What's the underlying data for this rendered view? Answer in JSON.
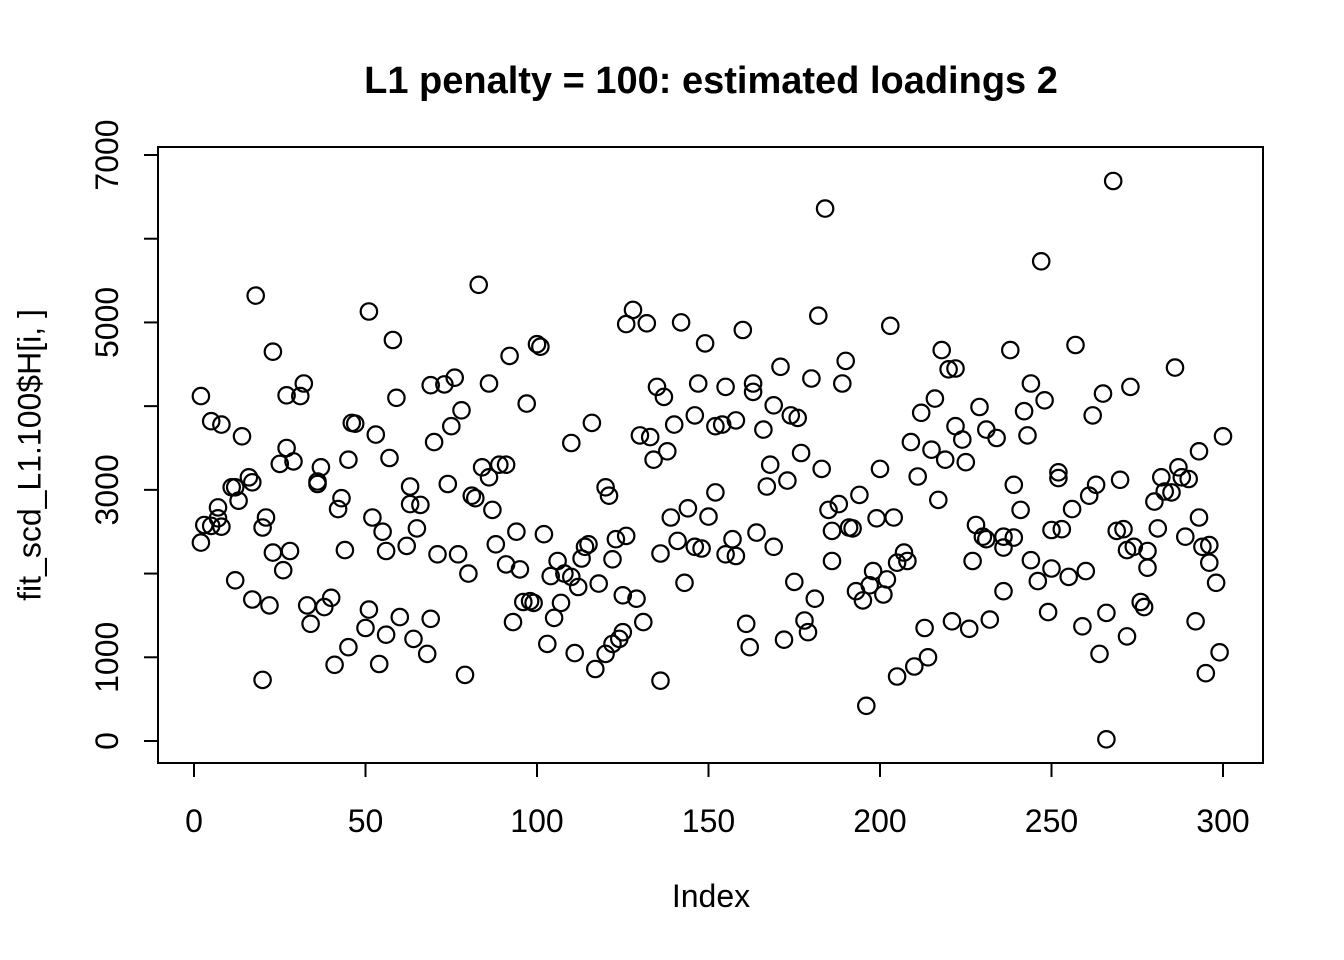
{
  "page": {
    "background": "#ffffff",
    "foreground": "#000000"
  },
  "chart_data": {
    "type": "scatter",
    "title": "L1 penalty = 100: estimated loadings 2",
    "xlabel": "Index",
    "ylabel": "fit_scd_L1.100$H[i, ]",
    "xlim": [
      0,
      300
    ],
    "ylim": [
      0,
      7000
    ],
    "grid": false,
    "legend": "none",
    "marker": "open-circle",
    "marker_color": "#000000",
    "x_ticks": [
      {
        "v": 0,
        "label": "0"
      },
      {
        "v": 50,
        "label": "50"
      },
      {
        "v": 100,
        "label": "100"
      },
      {
        "v": 150,
        "label": "150"
      },
      {
        "v": 200,
        "label": "200"
      },
      {
        "v": 250,
        "label": "250"
      },
      {
        "v": 300,
        "label": "300"
      }
    ],
    "y_ticks": [
      {
        "v": 0,
        "label": "0"
      },
      {
        "v": 1000,
        "label": "1000"
      },
      {
        "v": 2000,
        "label": ""
      },
      {
        "v": 3000,
        "label": "3000"
      },
      {
        "v": 4000,
        "label": ""
      },
      {
        "v": 5000,
        "label": "5000"
      },
      {
        "v": 6000,
        "label": ""
      },
      {
        "v": 7000,
        "label": "7000"
      }
    ],
    "points": [
      [
        18,
        5320
      ],
      [
        23,
        4650
      ],
      [
        51,
        5130
      ],
      [
        58,
        4790
      ],
      [
        83,
        5450
      ],
      [
        92,
        4600
      ],
      [
        100,
        4740
      ],
      [
        101,
        4710
      ],
      [
        126,
        4980
      ],
      [
        128,
        5150
      ],
      [
        132,
        4990
      ],
      [
        142,
        5000
      ],
      [
        149,
        4750
      ],
      [
        160,
        4910
      ],
      [
        182,
        5080
      ],
      [
        184,
        6360
      ],
      [
        203,
        4960
      ],
      [
        218,
        4670
      ],
      [
        238,
        4670
      ],
      [
        247,
        5730
      ],
      [
        257,
        4730
      ],
      [
        268,
        6690
      ],
      [
        2,
        4120
      ],
      [
        5,
        3820
      ],
      [
        8,
        3780
      ],
      [
        14,
        3640
      ],
      [
        27,
        4130
      ],
      [
        31,
        4120
      ],
      [
        32,
        4270
      ],
      [
        59,
        4100
      ],
      [
        69,
        4250
      ],
      [
        46,
        3800
      ],
      [
        47,
        3790
      ],
      [
        53,
        3660
      ],
      [
        70,
        3570
      ],
      [
        27,
        3500
      ],
      [
        25,
        3310
      ],
      [
        29,
        3340
      ],
      [
        37,
        3270
      ],
      [
        45,
        3360
      ],
      [
        57,
        3380
      ],
      [
        16,
        3150
      ],
      [
        17,
        3090
      ],
      [
        11,
        3030
      ],
      [
        12,
        3030
      ],
      [
        13,
        2870
      ],
      [
        36,
        3070
      ],
      [
        36,
        3100
      ],
      [
        43,
        2900
      ],
      [
        42,
        2770
      ],
      [
        7,
        2790
      ],
      [
        3,
        2580
      ],
      [
        5,
        2570
      ],
      [
        8,
        2560
      ],
      [
        7,
        2660
      ],
      [
        21,
        2670
      ],
      [
        20,
        2550
      ],
      [
        2,
        2370
      ],
      [
        52,
        2670
      ],
      [
        55,
        2500
      ],
      [
        63,
        3040
      ],
      [
        63,
        2830
      ],
      [
        66,
        2820
      ],
      [
        65,
        2540
      ],
      [
        62,
        2330
      ],
      [
        23,
        2250
      ],
      [
        28,
        2270
      ],
      [
        44,
        2280
      ],
      [
        56,
        2270
      ],
      [
        71,
        2230
      ],
      [
        73,
        4260
      ],
      [
        76,
        4340
      ],
      [
        86,
        4270
      ],
      [
        97,
        4030
      ],
      [
        78,
        3950
      ],
      [
        75,
        3760
      ],
      [
        116,
        3800
      ],
      [
        110,
        3560
      ],
      [
        135,
        4230
      ],
      [
        137,
        4110
      ],
      [
        147,
        4270
      ],
      [
        146,
        3890
      ],
      [
        140,
        3780
      ],
      [
        130,
        3650
      ],
      [
        133,
        3630
      ],
      [
        152,
        3760
      ],
      [
        138,
        3460
      ],
      [
        134,
        3360
      ],
      [
        89,
        3300
      ],
      [
        91,
        3300
      ],
      [
        84,
        3270
      ],
      [
        86,
        3150
      ],
      [
        74,
        3070
      ],
      [
        81,
        2930
      ],
      [
        82,
        2900
      ],
      [
        87,
        2760
      ],
      [
        120,
        3030
      ],
      [
        121,
        2930
      ],
      [
        94,
        2500
      ],
      [
        102,
        2470
      ],
      [
        88,
        2350
      ],
      [
        77,
        2230
      ],
      [
        114,
        2320
      ],
      [
        115,
        2350
      ],
      [
        123,
        2410
      ],
      [
        126,
        2450
      ],
      [
        139,
        2670
      ],
      [
        144,
        2780
      ],
      [
        150,
        2680
      ],
      [
        141,
        2390
      ],
      [
        146,
        2320
      ],
      [
        148,
        2300
      ],
      [
        113,
        2180
      ],
      [
        136,
        2240
      ],
      [
        220,
        4440
      ],
      [
        222,
        4450
      ],
      [
        171,
        4470
      ],
      [
        180,
        4330
      ],
      [
        190,
        4540
      ],
      [
        189,
        4270
      ],
      [
        155,
        4230
      ],
      [
        163,
        4270
      ],
      [
        163,
        4170
      ],
      [
        169,
        4010
      ],
      [
        174,
        3890
      ],
      [
        176,
        3860
      ],
      [
        154,
        3780
      ],
      [
        158,
        3830
      ],
      [
        166,
        3720
      ],
      [
        216,
        4090
      ],
      [
        212,
        3920
      ],
      [
        229,
        3990
      ],
      [
        222,
        3760
      ],
      [
        231,
        3720
      ],
      [
        224,
        3600
      ],
      [
        209,
        3570
      ],
      [
        215,
        3480
      ],
      [
        219,
        3360
      ],
      [
        225,
        3330
      ],
      [
        177,
        3440
      ],
      [
        168,
        3300
      ],
      [
        183,
        3250
      ],
      [
        167,
        3040
      ],
      [
        173,
        3110
      ],
      [
        200,
        3250
      ],
      [
        211,
        3160
      ],
      [
        152,
        2970
      ],
      [
        188,
        2830
      ],
      [
        185,
        2760
      ],
      [
        194,
        2940
      ],
      [
        199,
        2660
      ],
      [
        204,
        2670
      ],
      [
        191,
        2550
      ],
      [
        192,
        2540
      ],
      [
        186,
        2510
      ],
      [
        217,
        2880
      ],
      [
        164,
        2490
      ],
      [
        157,
        2410
      ],
      [
        169,
        2320
      ],
      [
        155,
        2230
      ],
      [
        158,
        2210
      ],
      [
        207,
        2250
      ],
      [
        228,
        2580
      ],
      [
        230,
        2440
      ],
      [
        231,
        2410
      ],
      [
        286,
        4460
      ],
      [
        244,
        4270
      ],
      [
        248,
        4070
      ],
      [
        242,
        3940
      ],
      [
        265,
        4150
      ],
      [
        273,
        4230
      ],
      [
        262,
        3890
      ],
      [
        234,
        3620
      ],
      [
        243,
        3650
      ],
      [
        293,
        3460
      ],
      [
        300,
        3640
      ],
      [
        252,
        3210
      ],
      [
        252,
        3140
      ],
      [
        239,
        3060
      ],
      [
        263,
        3060
      ],
      [
        261,
        2930
      ],
      [
        270,
        3120
      ],
      [
        287,
        3270
      ],
      [
        288,
        3150
      ],
      [
        290,
        3130
      ],
      [
        282,
        3150
      ],
      [
        283,
        2980
      ],
      [
        285,
        2970
      ],
      [
        280,
        2860
      ],
      [
        293,
        2670
      ],
      [
        281,
        2540
      ],
      [
        289,
        2440
      ],
      [
        241,
        2760
      ],
      [
        256,
        2770
      ],
      [
        250,
        2520
      ],
      [
        253,
        2530
      ],
      [
        236,
        2440
      ],
      [
        239,
        2430
      ],
      [
        236,
        2310
      ],
      [
        269,
        2510
      ],
      [
        271,
        2530
      ],
      [
        274,
        2320
      ],
      [
        272,
        2280
      ],
      [
        278,
        2270
      ],
      [
        294,
        2320
      ],
      [
        296,
        2340
      ],
      [
        244,
        2160
      ],
      [
        26,
        2040
      ],
      [
        12,
        1920
      ],
      [
        17,
        1690
      ],
      [
        22,
        1620
      ],
      [
        33,
        1620
      ],
      [
        40,
        1710
      ],
      [
        38,
        1600
      ],
      [
        34,
        1400
      ],
      [
        51,
        1570
      ],
      [
        50,
        1350
      ],
      [
        60,
        1480
      ],
      [
        56,
        1270
      ],
      [
        64,
        1220
      ],
      [
        45,
        1120
      ],
      [
        68,
        1040
      ],
      [
        69,
        1460
      ],
      [
        41,
        910
      ],
      [
        54,
        920
      ],
      [
        20,
        730
      ],
      [
        80,
        2000
      ],
      [
        91,
        2110
      ],
      [
        95,
        2050
      ],
      [
        104,
        1970
      ],
      [
        106,
        2150
      ],
      [
        108,
        2000
      ],
      [
        110,
        1960
      ],
      [
        112,
        1840
      ],
      [
        118,
        1880
      ],
      [
        122,
        2170
      ],
      [
        125,
        1740
      ],
      [
        96,
        1660
      ],
      [
        98,
        1670
      ],
      [
        99,
        1650
      ],
      [
        107,
        1650
      ],
      [
        105,
        1470
      ],
      [
        93,
        1420
      ],
      [
        129,
        1700
      ],
      [
        131,
        1420
      ],
      [
        143,
        1890
      ],
      [
        125,
        1300
      ],
      [
        124,
        1220
      ],
      [
        122,
        1160
      ],
      [
        120,
        1040
      ],
      [
        103,
        1160
      ],
      [
        111,
        1050
      ],
      [
        117,
        860
      ],
      [
        79,
        790
      ],
      [
        136,
        720
      ],
      [
        186,
        2150
      ],
      [
        205,
        2130
      ],
      [
        208,
        2150
      ],
      [
        227,
        2150
      ],
      [
        198,
        2030
      ],
      [
        202,
        1930
      ],
      [
        197,
        1860
      ],
      [
        193,
        1790
      ],
      [
        201,
        1750
      ],
      [
        195,
        1680
      ],
      [
        175,
        1900
      ],
      [
        181,
        1700
      ],
      [
        178,
        1440
      ],
      [
        179,
        1300
      ],
      [
        161,
        1400
      ],
      [
        162,
        1120
      ],
      [
        172,
        1210
      ],
      [
        213,
        1350
      ],
      [
        221,
        1430
      ],
      [
        226,
        1340
      ],
      [
        232,
        1450
      ],
      [
        214,
        1000
      ],
      [
        210,
        890
      ],
      [
        205,
        770
      ],
      [
        196,
        420
      ],
      [
        236,
        1790
      ],
      [
        250,
        2060
      ],
      [
        246,
        1910
      ],
      [
        255,
        1960
      ],
      [
        260,
        2030
      ],
      [
        278,
        2070
      ],
      [
        296,
        2130
      ],
      [
        298,
        1890
      ],
      [
        249,
        1540
      ],
      [
        259,
        1370
      ],
      [
        266,
        1530
      ],
      [
        276,
        1660
      ],
      [
        277,
        1600
      ],
      [
        272,
        1250
      ],
      [
        264,
        1040
      ],
      [
        292,
        1430
      ],
      [
        299,
        1060
      ],
      [
        295,
        810
      ],
      [
        266,
        20
      ]
    ]
  }
}
